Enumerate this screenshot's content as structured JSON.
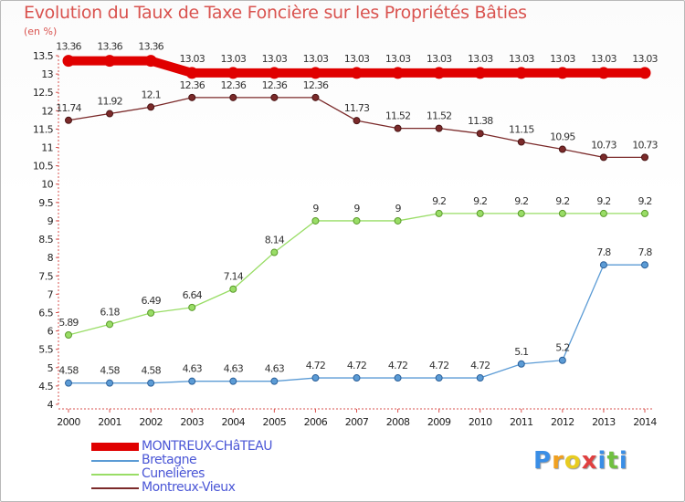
{
  "chart_data": {
    "type": "line",
    "title": "Evolution du Taux de Taxe Foncière sur les Propriétés Bâties",
    "ylabel": "(en %)",
    "ylim": [
      4,
      13.5
    ],
    "yticks": [
      "4",
      "4.5",
      "5",
      "5.5",
      "6",
      "6.5",
      "7",
      "7.5",
      "8",
      "8.5",
      "9",
      "9.5",
      "10",
      "10.5",
      "11",
      "11.5",
      "12",
      "12.5",
      "13",
      "13.5"
    ],
    "x": [
      "2000",
      "2001",
      "2002",
      "2003",
      "2004",
      "2005",
      "2006",
      "2007",
      "2008",
      "2009",
      "2010",
      "2011",
      "2012",
      "2013",
      "2014"
    ],
    "series": [
      {
        "name": "MONTREUX-CHâTEAU",
        "color": "#e00000",
        "values": [
          13.36,
          13.36,
          13.36,
          13.03,
          13.03,
          13.03,
          13.03,
          13.03,
          13.03,
          13.03,
          13.03,
          13.03,
          13.03,
          13.03,
          13.03
        ],
        "labels": [
          "13.36",
          "13.36",
          "13.36",
          "13.03",
          "13.03",
          "13.03",
          "13.03",
          "13.03",
          "13.03",
          "13.03",
          "13.03",
          "13.03",
          "13.03",
          "13.03",
          "13.03"
        ]
      },
      {
        "name": "Bretagne",
        "color": "#5b9bd5",
        "values": [
          4.58,
          4.58,
          4.58,
          4.63,
          4.63,
          4.63,
          4.72,
          4.72,
          4.72,
          4.72,
          4.72,
          5.1,
          5.2,
          7.8,
          7.8
        ],
        "labels": [
          "4.58",
          "4.58",
          "4.58",
          "4.63",
          "4.63",
          "4.63",
          "4.72",
          "4.72",
          "4.72",
          "4.72",
          "4.72",
          "5.1",
          "5.2",
          "7.8",
          "7.8"
        ]
      },
      {
        "name": "Cunelières",
        "color": "#99dd66",
        "values": [
          5.89,
          6.18,
          6.49,
          6.64,
          7.14,
          8.14,
          9,
          9,
          9,
          9.2,
          9.2,
          9.2,
          9.2,
          9.2,
          9.2
        ],
        "labels": [
          "5.89",
          "6.18",
          "6.49",
          "6.64",
          "7.14",
          "8.14",
          "9",
          "9",
          "9",
          "9.2",
          "9.2",
          "9.2",
          "9.2",
          "9.2",
          "9.2"
        ]
      },
      {
        "name": "Montreux-Vieux",
        "color": "#7b2a2a",
        "values": [
          11.74,
          11.92,
          12.1,
          12.36,
          12.36,
          12.36,
          12.36,
          11.73,
          11.52,
          11.52,
          11.38,
          11.15,
          10.95,
          10.73,
          10.73
        ],
        "labels": [
          "11.74",
          "11.92",
          "12.1",
          "12.36",
          "12.36",
          "12.36",
          "12.36",
          "11.73",
          "11.52",
          "11.52",
          "11.38",
          "11.15",
          "10.95",
          "10.73",
          "10.73"
        ]
      }
    ],
    "legend_position": "bottom-left",
    "grid": false
  },
  "legend": {
    "items": [
      {
        "label": "MONTREUX-CHâTEAU",
        "color": "#e00000",
        "text_color": "#4a56d6"
      },
      {
        "label": "Bretagne",
        "color": "#5b9bd5",
        "text_color": "#4a56d6"
      },
      {
        "label": "Cunelières",
        "color": "#99dd66",
        "text_color": "#4a56d6"
      },
      {
        "label": "Montreux-Vieux",
        "color": "#7b2a2a",
        "text_color": "#4a56d6"
      }
    ]
  },
  "logo": {
    "letters": [
      "P",
      "r",
      "o",
      "x",
      "i",
      "t",
      "i"
    ],
    "colors": [
      "#3a8ee6",
      "#f0a020",
      "#e8cc20",
      "#e04040",
      "#3a8ee6",
      "#70c040",
      "#3a8ee6"
    ]
  }
}
